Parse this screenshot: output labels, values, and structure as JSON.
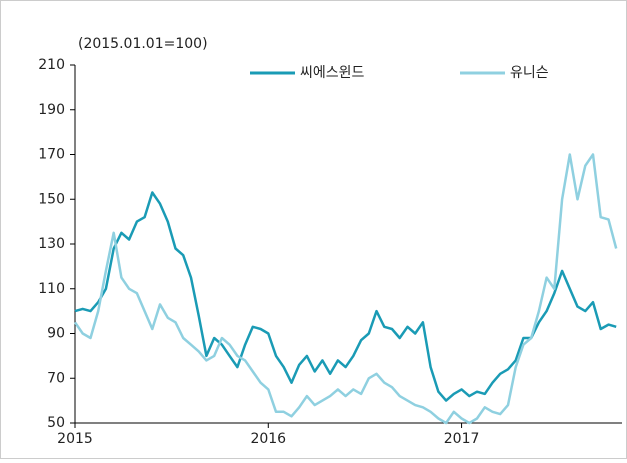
{
  "chart_data": {
    "type": "line",
    "subtitle": "(2015.01.01=100)",
    "x": [
      2015.0,
      2015.04,
      2015.08,
      2015.12,
      2015.16,
      2015.2,
      2015.24,
      2015.28,
      2015.32,
      2015.36,
      2015.4,
      2015.44,
      2015.48,
      2015.52,
      2015.56,
      2015.6,
      2015.64,
      2015.68,
      2015.72,
      2015.76,
      2015.8,
      2015.84,
      2015.88,
      2015.92,
      2015.96,
      2016.0,
      2016.04,
      2016.08,
      2016.12,
      2016.16,
      2016.2,
      2016.24,
      2016.28,
      2016.32,
      2016.36,
      2016.4,
      2016.44,
      2016.48,
      2016.52,
      2016.56,
      2016.6,
      2016.64,
      2016.68,
      2016.72,
      2016.76,
      2016.8,
      2016.84,
      2016.88,
      2016.92,
      2016.96,
      2017.0,
      2017.04,
      2017.08,
      2017.12,
      2017.16,
      2017.2,
      2017.24,
      2017.28,
      2017.32,
      2017.36,
      2017.4,
      2017.44,
      2017.48,
      2017.52,
      2017.56,
      2017.6,
      2017.64,
      2017.68,
      2017.72,
      2017.76,
      2017.8
    ],
    "series": [
      {
        "name": "씨에스윈드",
        "color": "#1a9bb5",
        "values": [
          100,
          101,
          100,
          104,
          110,
          128,
          135,
          132,
          140,
          142,
          153,
          148,
          140,
          128,
          125,
          115,
          98,
          80,
          88,
          85,
          80,
          75,
          85,
          93,
          92,
          90,
          80,
          75,
          68,
          76,
          80,
          73,
          78,
          72,
          78,
          75,
          80,
          87,
          90,
          100,
          93,
          92,
          88,
          93,
          90,
          95,
          75,
          64,
          60,
          63,
          65,
          62,
          64,
          63,
          68,
          72,
          74,
          78,
          88,
          88,
          95,
          100,
          108,
          118,
          110,
          102,
          100,
          104,
          92,
          94,
          93
        ]
      },
      {
        "name": "유니슨",
        "color": "#8fd0e0",
        "values": [
          95,
          90,
          88,
          100,
          118,
          135,
          115,
          110,
          108,
          100,
          92,
          103,
          97,
          95,
          88,
          85,
          82,
          78,
          80,
          88,
          85,
          80,
          78,
          73,
          68,
          65,
          55,
          55,
          53,
          57,
          62,
          58,
          60,
          62,
          65,
          62,
          65,
          63,
          70,
          72,
          68,
          66,
          62,
          60,
          58,
          57,
          55,
          52,
          50,
          55,
          52,
          50,
          52,
          57,
          55,
          54,
          58,
          75,
          85,
          88,
          100,
          115,
          110,
          150,
          170,
          150,
          165,
          170,
          142,
          141,
          128
        ]
      }
    ],
    "xlim": [
      2015,
      2017.83
    ],
    "xticks": [
      2015,
      2016,
      2017
    ],
    "ylim": [
      50,
      210
    ],
    "yticks": [
      50,
      70,
      90,
      110,
      130,
      150,
      170,
      190,
      210
    ],
    "legend": "top"
  }
}
